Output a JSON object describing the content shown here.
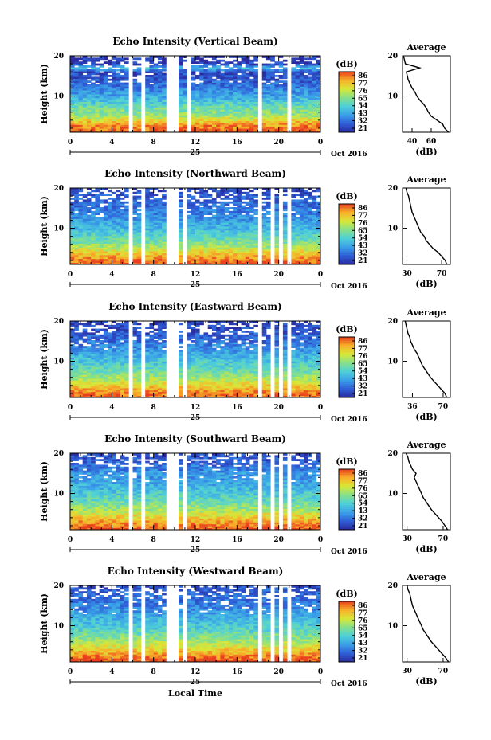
{
  "colorbar_colors": [
    "#2a2a9e",
    "#2f5fd8",
    "#3aa0e8",
    "#4fd0d8",
    "#86e08a",
    "#d8e838",
    "#f8b02a",
    "#e8401e"
  ],
  "chart_data": [
    {
      "type": "heatmap",
      "title": "Echo Intensity (Vertical Beam)",
      "ylabel": "Height (km)",
      "ylim": [
        1,
        20
      ],
      "yticks": [
        "20",
        "10"
      ],
      "xlim": [
        0,
        24
      ],
      "xticks": [
        "0",
        "4",
        "8",
        "12",
        "16",
        "20",
        "0"
      ],
      "day_label": "25",
      "month_label": "Oct 2016",
      "colorbar": {
        "unit": "(dB)",
        "ticks": [
          "86",
          "77",
          "76",
          "65",
          "54",
          "43",
          "32",
          "21"
        ]
      },
      "gaps": [
        [
          5.8,
          6.0
        ],
        [
          6.8,
          7.0
        ],
        [
          9.4,
          10.5
        ],
        [
          11.3,
          11.4
        ],
        [
          18.0,
          18.2
        ],
        [
          19.2,
          19.3
        ],
        [
          19.9,
          20.1
        ],
        [
          20.6,
          21.0
        ]
      ],
      "average": {
        "title": "Average",
        "xlabel": "(dB)",
        "xlim": [
          30,
          80
        ],
        "xticks": [
          "40",
          "60"
        ],
        "yticks": [
          "20",
          "10"
        ],
        "profile": [
          [
            1,
            78
          ],
          [
            2,
            74
          ],
          [
            3,
            72
          ],
          [
            4,
            66
          ],
          [
            5,
            60
          ],
          [
            6,
            57
          ],
          [
            7,
            55
          ],
          [
            8,
            52
          ],
          [
            9,
            48
          ],
          [
            10,
            45
          ],
          [
            11,
            43
          ],
          [
            12,
            40
          ],
          [
            13,
            38
          ],
          [
            14,
            36
          ],
          [
            15,
            35
          ],
          [
            16,
            34
          ],
          [
            17,
            48
          ],
          [
            18,
            33
          ],
          [
            19,
            32
          ],
          [
            20,
            31
          ]
        ]
      }
    },
    {
      "type": "heatmap",
      "title": "Echo Intensity (Northward Beam)",
      "ylabel": "Height (km)",
      "ylim": [
        1,
        20
      ],
      "yticks": [
        "20",
        "10"
      ],
      "xlim": [
        0,
        24
      ],
      "xticks": [
        "0",
        "4",
        "8",
        "12",
        "16",
        "20",
        "0"
      ],
      "day_label": "25",
      "month_label": "Oct 2016",
      "colorbar": {
        "unit": "(dB)",
        "ticks": [
          "86",
          "77",
          "76",
          "65",
          "54",
          "43",
          "32",
          "21"
        ]
      },
      "gaps": [
        [
          5.8,
          6.0
        ],
        [
          6.8,
          7.0
        ],
        [
          9.4,
          10.5
        ],
        [
          11.0,
          11.3
        ],
        [
          18.0,
          18.2
        ],
        [
          19.2,
          19.4
        ],
        [
          20.0,
          20.2
        ],
        [
          20.6,
          21.0
        ]
      ],
      "average": {
        "title": "Average",
        "xlabel": "(dB)",
        "xlim": [
          25,
          80
        ],
        "xticks": [
          "30",
          "70"
        ],
        "yticks": [
          "20",
          "10"
        ],
        "profile": [
          [
            1,
            76
          ],
          [
            2,
            74
          ],
          [
            3,
            70
          ],
          [
            4,
            66
          ],
          [
            5,
            60
          ],
          [
            6,
            56
          ],
          [
            7,
            52
          ],
          [
            8,
            50
          ],
          [
            9,
            46
          ],
          [
            10,
            44
          ],
          [
            11,
            42
          ],
          [
            12,
            40
          ],
          [
            13,
            38
          ],
          [
            14,
            36
          ],
          [
            15,
            35
          ],
          [
            16,
            34
          ],
          [
            17,
            33
          ],
          [
            18,
            32
          ],
          [
            19,
            30
          ],
          [
            20,
            29
          ]
        ]
      }
    },
    {
      "type": "heatmap",
      "title": "Echo Intensity (Eastward Beam)",
      "ylabel": "Height (km)",
      "ylim": [
        1,
        20
      ],
      "yticks": [
        "20",
        "10"
      ],
      "xlim": [
        0,
        24
      ],
      "xticks": [
        "0",
        "4",
        "8",
        "12",
        "16",
        "20",
        "0"
      ],
      "day_label": "25",
      "month_label": "Oct 2016",
      "colorbar": {
        "unit": "(dB)",
        "ticks": [
          "86",
          "77",
          "76",
          "65",
          "54",
          "43",
          "32",
          "21"
        ]
      },
      "gaps": [
        [
          5.8,
          6.0
        ],
        [
          6.8,
          7.0
        ],
        [
          9.4,
          10.5
        ],
        [
          11.0,
          11.3
        ],
        [
          18.0,
          18.2
        ],
        [
          19.2,
          19.4
        ],
        [
          20.0,
          20.2
        ],
        [
          20.6,
          21.0
        ]
      ],
      "average": {
        "title": "Average",
        "xlabel": "(dB)",
        "xlim": [
          25,
          78
        ],
        "xticks": [
          "36",
          "70"
        ],
        "yticks": [
          "20",
          "10"
        ],
        "profile": [
          [
            1,
            74
          ],
          [
            2,
            72
          ],
          [
            3,
            68
          ],
          [
            4,
            64
          ],
          [
            5,
            60
          ],
          [
            6,
            56
          ],
          [
            7,
            53
          ],
          [
            8,
            50
          ],
          [
            9,
            47
          ],
          [
            10,
            45
          ],
          [
            11,
            43
          ],
          [
            12,
            41
          ],
          [
            13,
            38
          ],
          [
            14,
            36
          ],
          [
            15,
            34
          ],
          [
            16,
            33
          ],
          [
            17,
            31
          ],
          [
            18,
            30
          ],
          [
            19,
            29
          ],
          [
            20,
            28
          ]
        ]
      }
    },
    {
      "type": "heatmap",
      "title": "Echo Intensity (Southward Beam)",
      "ylabel": "Height (km)",
      "ylim": [
        1,
        20
      ],
      "yticks": [
        "20",
        "10"
      ],
      "xlim": [
        0,
        24
      ],
      "xticks": [
        "0",
        "4",
        "8",
        "12",
        "16",
        "20",
        "0"
      ],
      "day_label": "25",
      "month_label": "Oct 2016",
      "colorbar": {
        "unit": "(dB)",
        "ticks": [
          "86",
          "77",
          "76",
          "65",
          "54",
          "43",
          "32",
          "21"
        ]
      },
      "gaps": [
        [
          5.8,
          6.0
        ],
        [
          6.8,
          7.0
        ],
        [
          9.4,
          10.5
        ],
        [
          11.0,
          11.3
        ],
        [
          18.0,
          18.2
        ],
        [
          19.2,
          19.4
        ],
        [
          20.0,
          20.2
        ],
        [
          20.6,
          21.0
        ]
      ],
      "average": {
        "title": "Average",
        "xlabel": "(dB)",
        "xlim": [
          25,
          78
        ],
        "xticks": [
          "30",
          "70"
        ],
        "yticks": [
          "20",
          "10"
        ],
        "profile": [
          [
            1,
            75
          ],
          [
            2,
            72
          ],
          [
            3,
            69
          ],
          [
            4,
            65
          ],
          [
            5,
            61
          ],
          [
            6,
            57
          ],
          [
            7,
            54
          ],
          [
            8,
            51
          ],
          [
            9,
            48
          ],
          [
            10,
            46
          ],
          [
            11,
            44
          ],
          [
            12,
            42
          ],
          [
            13,
            40
          ],
          [
            14,
            38
          ],
          [
            15,
            40
          ],
          [
            16,
            36
          ],
          [
            17,
            34
          ],
          [
            18,
            32
          ],
          [
            19,
            31
          ],
          [
            20,
            29
          ]
        ]
      }
    },
    {
      "type": "heatmap",
      "title": "Echo Intensity (Westward Beam)",
      "ylabel": "Height (km)",
      "ylim": [
        1,
        20
      ],
      "yticks": [
        "20",
        "10"
      ],
      "xlim": [
        0,
        24
      ],
      "xticks": [
        "0",
        "4",
        "8",
        "12",
        "16",
        "20",
        "0"
      ],
      "day_label": "25",
      "month_label": "Oct 2016",
      "xlabel": "Local Time",
      "colorbar": {
        "unit": "(dB)",
        "ticks": [
          "86",
          "77",
          "76",
          "65",
          "54",
          "43",
          "32",
          "21"
        ]
      },
      "gaps": [
        [
          5.8,
          6.0
        ],
        [
          6.8,
          7.0
        ],
        [
          9.4,
          10.5
        ],
        [
          11.0,
          11.3
        ],
        [
          18.0,
          18.2
        ],
        [
          19.2,
          19.4
        ],
        [
          20.0,
          20.2
        ],
        [
          20.6,
          21.0
        ]
      ],
      "average": {
        "title": "Average",
        "xlabel": "(dB)",
        "xlim": [
          25,
          78
        ],
        "xticks": [
          "30",
          "70"
        ],
        "yticks": [
          "20",
          "10"
        ],
        "profile": [
          [
            1,
            76
          ],
          [
            2,
            73
          ],
          [
            3,
            69
          ],
          [
            4,
            65
          ],
          [
            5,
            61
          ],
          [
            6,
            57
          ],
          [
            7,
            54
          ],
          [
            8,
            51
          ],
          [
            9,
            48
          ],
          [
            10,
            46
          ],
          [
            11,
            44
          ],
          [
            12,
            42
          ],
          [
            13,
            40
          ],
          [
            14,
            38
          ],
          [
            15,
            36
          ],
          [
            16,
            35
          ],
          [
            17,
            34
          ],
          [
            18,
            33
          ],
          [
            19,
            31
          ],
          [
            20,
            30
          ]
        ]
      }
    }
  ]
}
